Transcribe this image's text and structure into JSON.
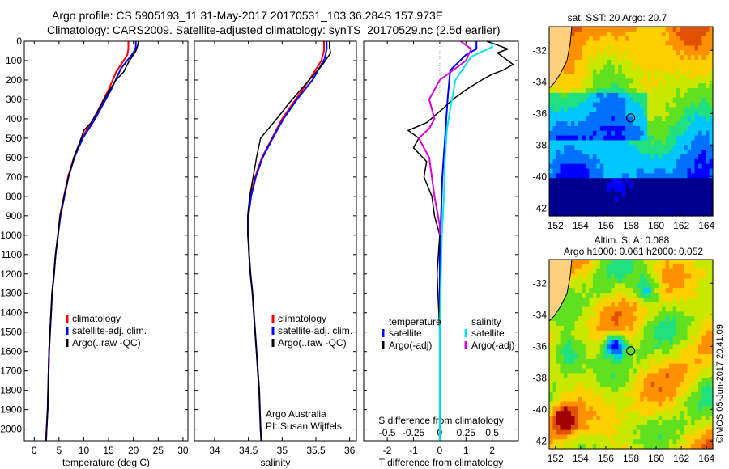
{
  "header": {
    "line1": "Argo profile: CS 5905193_11 31-May-2017 20170531_103 36.284S 157.973E",
    "line2": "Climatology: CARS2009. Satellite-adjusted climatology: synTS_20170529.nc (2.5d earlier)"
  },
  "chart_data": [
    {
      "id": "temperature",
      "type": "line",
      "xlabel": "temperature (deg C)",
      "xlim": [
        -2,
        31
      ],
      "xticks": [
        0,
        5,
        10,
        15,
        20,
        25,
        30
      ],
      "ylim": [
        2060,
        0
      ],
      "yticks": [
        0,
        100,
        200,
        300,
        400,
        500,
        600,
        700,
        800,
        900,
        1000,
        1100,
        1200,
        1300,
        1400,
        1500,
        1600,
        1700,
        1800,
        1900,
        2000
      ],
      "legend": {
        "items": [
          "climatology",
          "satellite-adj. clim.",
          "Argo(..raw -QC)"
        ],
        "colors": [
          "#ff0000",
          "#0000ff",
          "#000000"
        ]
      },
      "series": [
        {
          "name": "climatology",
          "color": "#ff0000",
          "points": [
            [
              19.0,
              0
            ],
            [
              19.0,
              40
            ],
            [
              18.8,
              70
            ],
            [
              16.5,
              160
            ],
            [
              15.0,
              250
            ],
            [
              12.0,
              400
            ],
            [
              9.5,
              500
            ],
            [
              8.0,
              600
            ],
            [
              6.8,
              700
            ],
            [
              6.0,
              800
            ],
            [
              5.2,
              900
            ],
            [
              4.8,
              1000
            ],
            [
              4.3,
              1100
            ],
            [
              4.0,
              1200
            ],
            [
              3.6,
              1300
            ],
            [
              3.4,
              1400
            ],
            [
              3.2,
              1500
            ],
            [
              3.0,
              1600
            ],
            [
              2.9,
              1700
            ],
            [
              2.8,
              1800
            ],
            [
              2.7,
              1900
            ],
            [
              2.5,
              2000
            ],
            [
              2.4,
              2060
            ]
          ]
        },
        {
          "name": "satellite-adj. clim.",
          "color": "#0000ff",
          "points": [
            [
              20.5,
              0
            ],
            [
              20.5,
              30
            ],
            [
              20.0,
              60
            ],
            [
              17.5,
              140
            ],
            [
              15.5,
              250
            ],
            [
              12.3,
              400
            ],
            [
              9.8,
              500
            ],
            [
              8.1,
              600
            ],
            [
              6.9,
              700
            ],
            [
              6.1,
              800
            ],
            [
              5.3,
              900
            ],
            [
              4.8,
              1000
            ],
            [
              4.3,
              1100
            ],
            [
              4.0,
              1200
            ],
            [
              3.6,
              1300
            ],
            [
              3.4,
              1400
            ],
            [
              3.2,
              1500
            ],
            [
              3.0,
              1600
            ],
            [
              2.9,
              1700
            ],
            [
              2.8,
              1800
            ],
            [
              2.7,
              1900
            ],
            [
              2.5,
              2000
            ],
            [
              2.4,
              2060
            ]
          ]
        },
        {
          "name": "Argo(..raw -QC)",
          "color": "#000000",
          "points": [
            [
              21.0,
              0
            ],
            [
              20.9,
              20
            ],
            [
              20.5,
              50
            ],
            [
              19.0,
              110
            ],
            [
              18.0,
              160
            ],
            [
              16.5,
              200
            ],
            [
              15.0,
              260
            ],
            [
              13.0,
              350
            ],
            [
              11.5,
              420
            ],
            [
              10.0,
              460
            ],
            [
              9.2,
              520
            ],
            [
              8.0,
              600
            ],
            [
              6.9,
              700
            ],
            [
              6.0,
              800
            ],
            [
              5.2,
              900
            ],
            [
              4.8,
              1000
            ],
            [
              4.3,
              1100
            ],
            [
              4.0,
              1200
            ],
            [
              3.6,
              1300
            ],
            [
              3.4,
              1400
            ],
            [
              3.2,
              1500
            ],
            [
              3.0,
              1600
            ],
            [
              2.9,
              1700
            ],
            [
              2.8,
              1800
            ],
            [
              2.7,
              1900
            ],
            [
              2.5,
              2000
            ],
            [
              2.4,
              2060
            ]
          ]
        }
      ]
    },
    {
      "id": "salinity",
      "type": "line",
      "xlabel": "salinity",
      "xlim": [
        33.7,
        36.1
      ],
      "xticks": [
        34,
        34.5,
        35,
        35.5,
        36
      ],
      "ylim": [
        2060,
        0
      ],
      "legend": {
        "items": [
          "climatology",
          "satellite-adj. clim.",
          "Argo(..raw -QC)"
        ],
        "colors": [
          "#ff0000",
          "#0000ff",
          "#000000"
        ]
      },
      "annotation": [
        "Argo Australia",
        "PI: Susan Wijffels"
      ],
      "series": [
        {
          "name": "climatology",
          "color": "#ff0000",
          "points": [
            [
              35.62,
              0
            ],
            [
              35.62,
              50
            ],
            [
              35.58,
              100
            ],
            [
              35.4,
              200
            ],
            [
              35.2,
              300
            ],
            [
              35.0,
              400
            ],
            [
              34.85,
              500
            ],
            [
              34.7,
              600
            ],
            [
              34.6,
              700
            ],
            [
              34.53,
              800
            ],
            [
              34.5,
              900
            ],
            [
              34.5,
              1000
            ],
            [
              34.51,
              1100
            ],
            [
              34.53,
              1200
            ],
            [
              34.56,
              1300
            ],
            [
              34.58,
              1400
            ],
            [
              34.6,
              1500
            ],
            [
              34.62,
              1600
            ],
            [
              34.64,
              1700
            ],
            [
              34.66,
              1800
            ],
            [
              34.67,
              1900
            ],
            [
              34.68,
              2000
            ],
            [
              34.69,
              2060
            ]
          ]
        },
        {
          "name": "satellite-adj. clim.",
          "color": "#0000ff",
          "points": [
            [
              35.66,
              0
            ],
            [
              35.66,
              40
            ],
            [
              35.63,
              90
            ],
            [
              35.45,
              200
            ],
            [
              35.22,
              300
            ],
            [
              35.02,
              400
            ],
            [
              34.86,
              500
            ],
            [
              34.71,
              600
            ],
            [
              34.61,
              700
            ],
            [
              34.54,
              800
            ],
            [
              34.5,
              900
            ],
            [
              34.5,
              1000
            ],
            [
              34.51,
              1100
            ],
            [
              34.53,
              1200
            ],
            [
              34.56,
              1300
            ],
            [
              34.58,
              1400
            ],
            [
              34.6,
              1500
            ],
            [
              34.62,
              1600
            ],
            [
              34.64,
              1700
            ],
            [
              34.66,
              1800
            ],
            [
              34.67,
              1900
            ],
            [
              34.68,
              2000
            ],
            [
              34.69,
              2060
            ]
          ]
        },
        {
          "name": "Argo(..raw -QC)",
          "color": "#000000",
          "points": [
            [
              35.7,
              0
            ],
            [
              35.7,
              30
            ],
            [
              35.72,
              60
            ],
            [
              35.6,
              120
            ],
            [
              35.4,
              200
            ],
            [
              35.1,
              320
            ],
            [
              34.92,
              400
            ],
            [
              34.8,
              450
            ],
            [
              34.68,
              500
            ],
            [
              34.62,
              600
            ],
            [
              34.57,
              700
            ],
            [
              34.52,
              800
            ],
            [
              34.49,
              900
            ],
            [
              34.49,
              1000
            ],
            [
              34.51,
              1100
            ],
            [
              34.53,
              1200
            ],
            [
              34.56,
              1300
            ],
            [
              34.58,
              1400
            ],
            [
              34.6,
              1500
            ],
            [
              34.62,
              1600
            ],
            [
              34.64,
              1700
            ],
            [
              34.66,
              1800
            ],
            [
              34.67,
              1900
            ],
            [
              34.68,
              2000
            ],
            [
              34.69,
              2060
            ]
          ]
        }
      ]
    },
    {
      "id": "differences",
      "type": "line",
      "xlabel": "T difference from climatology",
      "xlabel_top": "S difference from climatology",
      "xlim": [
        -2.9,
        3.0
      ],
      "xticks": [
        -2,
        -1,
        0,
        1,
        2
      ],
      "sticks": [
        -0.5,
        -0.25,
        0,
        0.25,
        0.5
      ],
      "ylim": [
        2060,
        0
      ],
      "legend": {
        "left_head": "temperature",
        "right_head": "salinity",
        "left_items": [
          "satellite",
          "Argo(-adj)"
        ],
        "left_colors": [
          "#0000ff",
          "#000000"
        ],
        "right_items": [
          "satellite",
          "Argo(-adj)"
        ],
        "right_colors": [
          "#00e5ee",
          "#dd00dd"
        ]
      },
      "series": [
        {
          "name": "satellite",
          "kind": "temperature",
          "color": "#0000ff",
          "points": [
            [
              1.4,
              0
            ],
            [
              1.4,
              40
            ],
            [
              1.0,
              70
            ],
            [
              0.4,
              150
            ],
            [
              0.3,
              300
            ],
            [
              0.2,
              500
            ],
            [
              0.1,
              700
            ],
            [
              0.05,
              900
            ],
            [
              0.0,
              1100
            ],
            [
              0.0,
              2060
            ]
          ]
        },
        {
          "name": "Argo(-adj)",
          "kind": "temperature",
          "color": "#000000",
          "points": [
            [
              1.8,
              0
            ],
            [
              2.6,
              40
            ],
            [
              2.2,
              60
            ],
            [
              2.8,
              120
            ],
            [
              2.4,
              150
            ],
            [
              2.0,
              170
            ],
            [
              1.6,
              200
            ],
            [
              1.0,
              250
            ],
            [
              0.5,
              300
            ],
            [
              0.1,
              350
            ],
            [
              -0.5,
              420
            ],
            [
              -1.2,
              460
            ],
            [
              -0.8,
              500
            ],
            [
              -1.0,
              550
            ],
            [
              -0.5,
              620
            ],
            [
              -0.6,
              700
            ],
            [
              -0.3,
              800
            ],
            [
              -0.2,
              900
            ],
            [
              0.0,
              1000
            ],
            [
              -0.1,
              1200
            ],
            [
              0.0,
              1500
            ],
            [
              0.0,
              2060
            ]
          ]
        },
        {
          "name": "satellite",
          "kind": "salinity",
          "color": "#00e5ee",
          "points": [
            [
              0.5,
              0
            ],
            [
              0.5,
              30
            ],
            [
              0.3,
              80
            ],
            [
              0.15,
              200
            ],
            [
              0.1,
              350
            ],
            [
              0.07,
              450
            ],
            [
              0.05,
              600
            ],
            [
              0.04,
              800
            ],
            [
              0.02,
              1000
            ],
            [
              0.0,
              1500
            ],
            [
              0.0,
              2060
            ]
          ]
        },
        {
          "name": "Argo(-adj)",
          "kind": "salinity",
          "color": "#dd00dd",
          "points": [
            [
              0.2,
              0
            ],
            [
              0.3,
              40
            ],
            [
              0.25,
              100
            ],
            [
              0.0,
              200
            ],
            [
              -0.1,
              300
            ],
            [
              -0.05,
              400
            ],
            [
              -0.1,
              450
            ],
            [
              -0.2,
              500
            ],
            [
              -0.1,
              600
            ],
            [
              -0.05,
              800
            ],
            [
              0.0,
              950
            ],
            [
              0.0,
              1000
            ]
          ]
        }
      ]
    }
  ],
  "maps": [
    {
      "id": "sst-map",
      "title": "sat. SST: 20 Argo: 20.7",
      "xticks": [
        152,
        154,
        156,
        158,
        160,
        162,
        164
      ],
      "yticks": [
        -32,
        -34,
        -36,
        -38,
        -40,
        -42
      ],
      "lon": [
        151.5,
        164.5
      ],
      "lat": [
        -42.5,
        -30.5
      ],
      "argo_position": [
        157.973,
        -36.284
      ],
      "colors": [
        "#000090",
        "#0000ff",
        "#0070ff",
        "#00c8ff",
        "#20e080",
        "#60e020",
        "#c8e800",
        "#ffd000",
        "#ff9000",
        "#e05000"
      ]
    },
    {
      "id": "sla-map",
      "title_line1": "Altim. SLA: 0.088",
      "title_line2": "Argo h1000: 0.061 h2000: 0.052",
      "xticks": [
        152,
        154,
        156,
        158,
        160,
        162,
        164
      ],
      "yticks": [
        -32,
        -34,
        -36,
        -38,
        -40,
        -42
      ],
      "lon": [
        151.5,
        164.5
      ],
      "lat": [
        -42.5,
        -30.5
      ],
      "argo_position": [
        157.973,
        -36.284
      ],
      "colors": [
        "#000090",
        "#0000ff",
        "#0070ff",
        "#00c8ff",
        "#20e080",
        "#60e020",
        "#c8e800",
        "#ffd000",
        "#ff9000",
        "#e05000",
        "#a00000"
      ]
    }
  ],
  "credit": "©IMOS 05-Jun-2017 20:41:09"
}
